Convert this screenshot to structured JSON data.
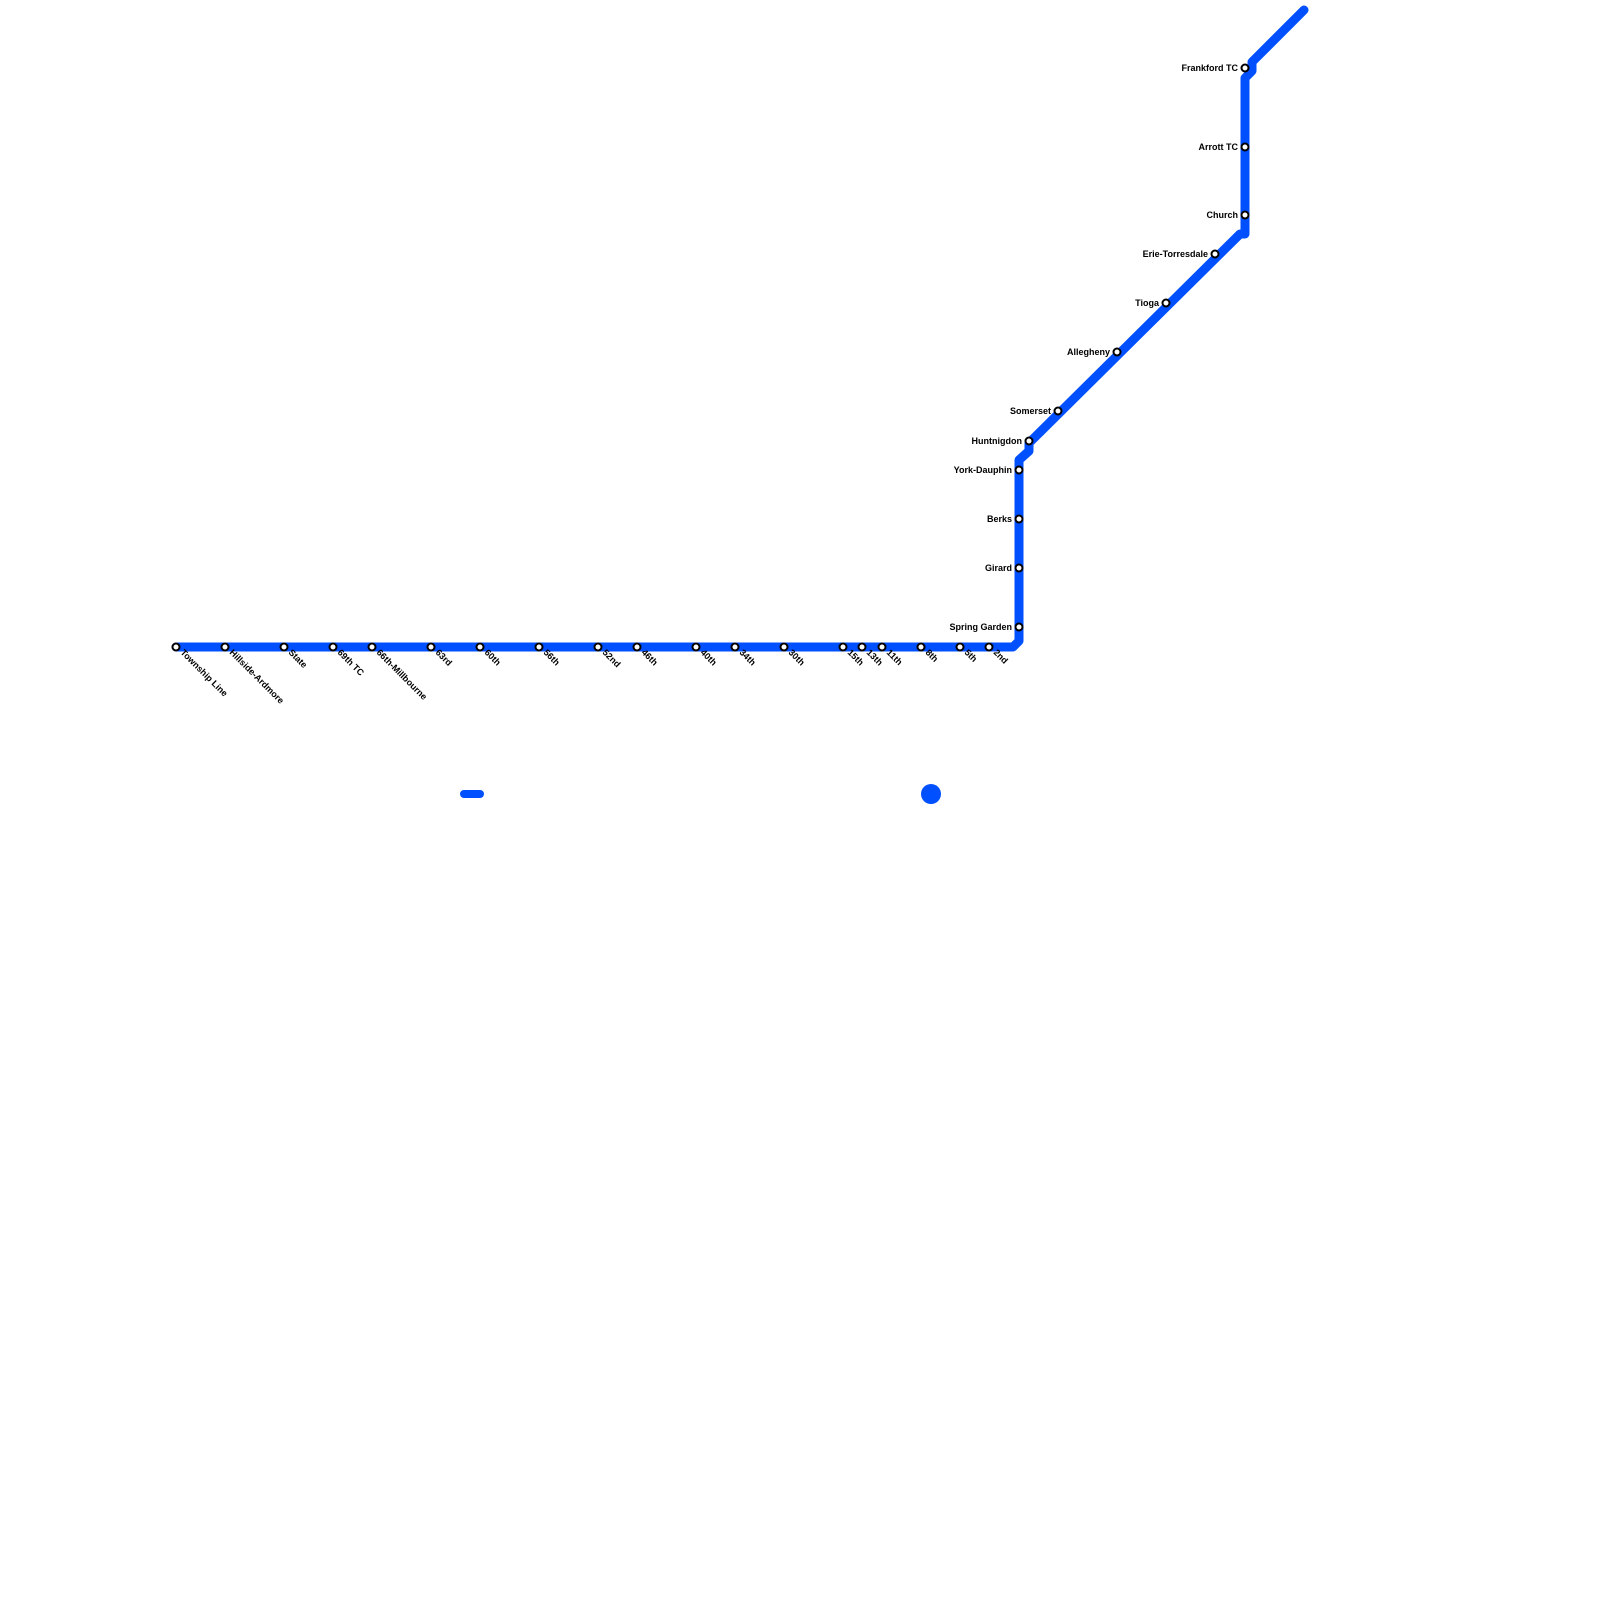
{
  "line_color": "#0050ff",
  "stations_bottom": [
    "Township Line",
    "Hillside-Ardmore",
    "State",
    "69th TC",
    "66th-Millbourne",
    "63rd",
    "60th",
    "56th",
    "52nd",
    "46th",
    "40th",
    "34th",
    "30th",
    "15th",
    "13th",
    "11th",
    "8th",
    "5th",
    "2nd"
  ],
  "stations_side": [
    "Spring Garden",
    "Girard",
    "Berks",
    "York-Dauphin",
    "Huntnigdon",
    "Somerset",
    "Allegheny",
    "Tioga",
    "Erie-Torresdale",
    "Church",
    "Arrott TC",
    "Frankford TC"
  ]
}
